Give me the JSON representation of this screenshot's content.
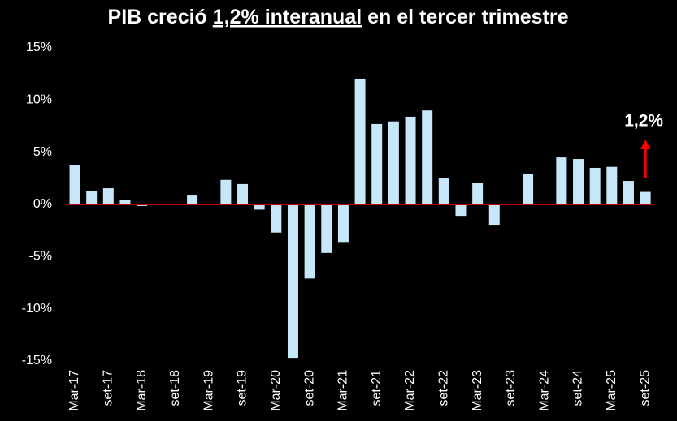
{
  "chart_data": {
    "type": "bar",
    "title": {
      "prefix": "PIB creció ",
      "emphasis": "1,2% interanual",
      "suffix": " en el tercer trimestre"
    },
    "categories": [
      "Mar-17",
      null,
      "set-17",
      null,
      "Mar-18",
      null,
      "set-18",
      null,
      "Mar-19",
      null,
      "set-19",
      null,
      "Mar-20",
      null,
      "set-20",
      null,
      "Mar-21",
      null,
      "set-21",
      null,
      "Mar-22",
      null,
      "set-22",
      null,
      "Mar-23",
      null,
      "set-23",
      null,
      "Mar-24",
      null,
      "set-24",
      null,
      "Mar-25",
      null,
      "set-25"
    ],
    "values": [
      3.8,
      1.25,
      1.55,
      0.45,
      -0.15,
      0,
      0,
      0.85,
      0,
      2.35,
      1.95,
      -0.5,
      -2.7,
      -14.7,
      -7.1,
      -4.65,
      -3.6,
      12.05,
      7.7,
      7.95,
      8.4,
      9.0,
      2.5,
      -1.1,
      2.1,
      -1.95,
      0,
      2.95,
      0,
      4.5,
      4.35,
      3.5,
      3.6,
      2.25,
      1.2
    ],
    "color": "#c6e7f7",
    "zero_line_color": "#c00000",
    "ylim": [
      -15,
      15
    ],
    "yticks": [
      {
        "value": -15,
        "label": "-15%"
      },
      {
        "value": -10,
        "label": "-10%"
      },
      {
        "value": -5,
        "label": "-5%"
      },
      {
        "value": 0,
        "label": "0%"
      },
      {
        "value": 5,
        "label": "5%"
      },
      {
        "value": 10,
        "label": "10%"
      },
      {
        "value": 15,
        "label": "15%"
      }
    ],
    "annotation": {
      "text": "1,2%",
      "color": "#ff0000"
    }
  }
}
